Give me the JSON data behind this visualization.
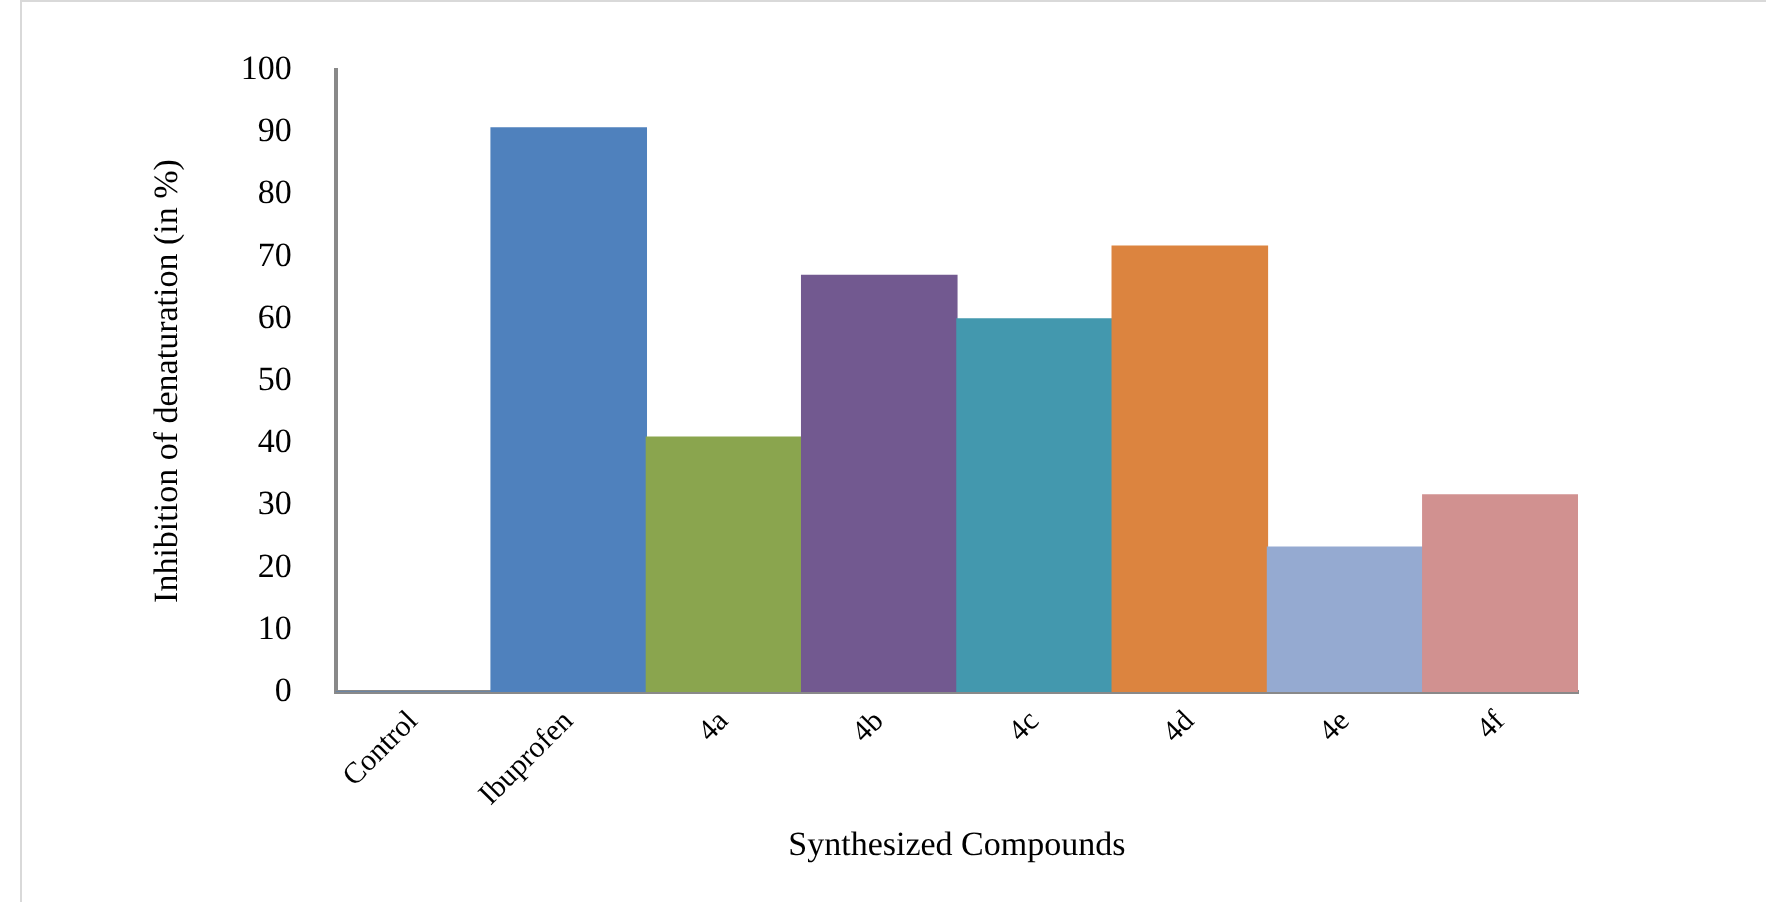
{
  "chart_data": {
    "type": "bar",
    "xlabel": "Synthesized Compounds",
    "ylabel": "Inhibition of denaturation (in %)",
    "categories": [
      "Control",
      "Ibuprofen",
      "4a",
      "4b",
      "4c",
      "4d",
      "4e",
      "4f"
    ],
    "values": [
      0,
      90.7,
      41,
      67,
      60,
      71.7,
      23.3,
      31.7
    ],
    "colors": [
      "#4f81bd",
      "#4f81bd",
      "#8aa54e",
      "#725990",
      "#4398ae",
      "#dc843f",
      "#95aad1",
      "#d19190"
    ],
    "ylim": [
      0,
      100
    ],
    "yticks": [
      0,
      10,
      20,
      30,
      40,
      50,
      60,
      70,
      80,
      90,
      100
    ],
    "grid": false,
    "legend": false
  }
}
